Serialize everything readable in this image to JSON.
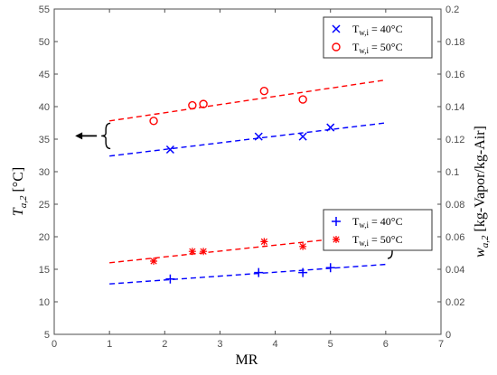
{
  "chart_data": {
    "type": "scatter",
    "xlabel": "MR",
    "ylabel_left": "T_{a,2} [°C]",
    "ylabel_right": "w_{a,2} [kg-Vapor/kg-Air]",
    "xlim": [
      0,
      7
    ],
    "ylim_left": [
      5,
      55
    ],
    "ylim_right": [
      0,
      0.2
    ],
    "x_ticks": [
      "0",
      "1",
      "2",
      "3",
      "4",
      "5",
      "6",
      "7"
    ],
    "y_left_ticks": [
      "5",
      "10",
      "15",
      "20",
      "25",
      "30",
      "35",
      "40",
      "45",
      "50",
      "55"
    ],
    "y_right_ticks": [
      "0",
      "0.02",
      "0.04",
      "0.06",
      "0.08",
      "0.1",
      "0.12",
      "0.14",
      "0.16",
      "0.18",
      "0.2"
    ],
    "grid": false,
    "series": [
      {
        "name": "T_{w,i} = 40°C",
        "legend": "Tw,i = 40°C",
        "axis": "left",
        "marker": "x",
        "color": "#0000ff",
        "x": [
          2.1,
          3.7,
          4.5,
          5.0
        ],
        "y": [
          33.4,
          35.4,
          35.4,
          36.8
        ],
        "fit": {
          "x": [
            1.0,
            6.0
          ],
          "y": [
            32.4,
            37.5
          ]
        }
      },
      {
        "name": "T_{w,i} = 50°C",
        "legend": "Tw,i = 50°C",
        "axis": "left",
        "marker": "o",
        "color": "#ff0000",
        "x": [
          1.8,
          2.5,
          2.7,
          3.8,
          4.5
        ],
        "y": [
          37.8,
          40.2,
          40.4,
          42.4,
          41.1
        ],
        "fit": {
          "x": [
            1.0,
            6.0
          ],
          "y": [
            37.8,
            44.1
          ]
        }
      },
      {
        "name": "T_{w,i} = 40°C",
        "legend": "Tw,i = 40°C",
        "axis": "right",
        "marker": "+",
        "color": "#0000ff",
        "x": [
          2.1,
          3.7,
          4.5,
          5.0
        ],
        "y": [
          0.034,
          0.038,
          0.038,
          0.041
        ],
        "fit": {
          "x": [
            1.0,
            6.0
          ],
          "y": [
            0.031,
            0.043
          ]
        }
      },
      {
        "name": "T_{w,i} = 50°C",
        "legend": "Tw,i = 50°C",
        "axis": "right",
        "marker": "*",
        "color": "#ff0000",
        "x": [
          1.8,
          2.5,
          2.7,
          3.8,
          4.5
        ],
        "y": [
          0.045,
          0.051,
          0.051,
          0.057,
          0.054
        ],
        "fit": {
          "x": [
            1.0,
            6.0
          ],
          "y": [
            0.044,
            0.062
          ]
        }
      }
    ],
    "legends": [
      {
        "position": "top-right",
        "entries": [
          "Tw,i = 40°C",
          "Tw,i = 50°C"
        ],
        "markers": [
          "x",
          "o"
        ],
        "colors": [
          "#0000ff",
          "#ff0000"
        ]
      },
      {
        "position": "middle-right",
        "entries": [
          "Tw,i = 40°C",
          "Tw,i = 50°C"
        ],
        "markers": [
          "+",
          "*"
        ],
        "colors": [
          "#0000ff",
          "#ff0000"
        ]
      }
    ],
    "annotations": [
      {
        "type": "brace-arrow",
        "points_to": "left-axis",
        "at_y_left": 35.5,
        "near_x": 1.0
      },
      {
        "type": "brace-arrow",
        "points_to": "right-axis",
        "at_y_right": 0.0545,
        "near_x": 6.2
      }
    ]
  }
}
